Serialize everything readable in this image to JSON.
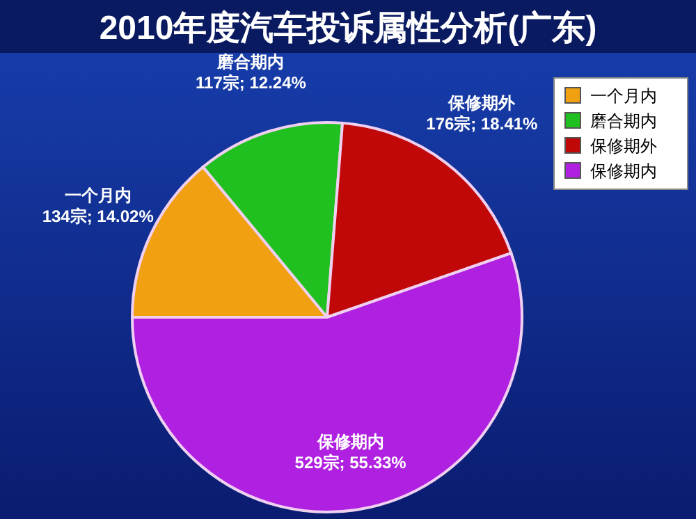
{
  "chart_data": {
    "type": "pie",
    "title": "2010年度汽车投诉属性分析(广东)",
    "categories": [
      "一个月内",
      "磨合期内",
      "保修期外",
      "保修期内"
    ],
    "values": [
      134,
      117,
      176,
      529
    ],
    "value_labels": [
      "134宗; 14.02%",
      "117宗; 12.24%",
      "176宗; 18.41%",
      "529宗; 55.33%"
    ],
    "colors": [
      "#f0a010",
      "#20c020",
      "#c00808",
      "#b020e0"
    ],
    "legend": "top right"
  }
}
